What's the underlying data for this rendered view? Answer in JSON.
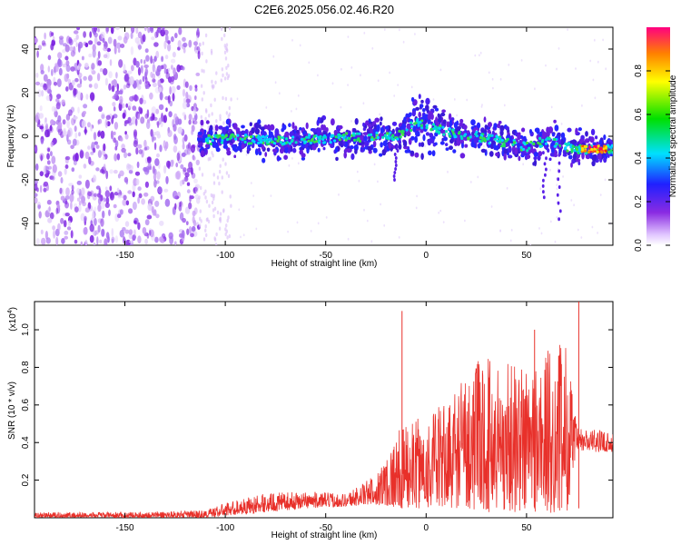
{
  "title": "C2E6.2025.056.02.46.R20",
  "colors": {
    "snr_line": "#e8302a",
    "background": "#ffffff",
    "axis": "#000000"
  },
  "chart_data": [
    {
      "type": "heatmap",
      "xlabel": "Height of straight line (km)",
      "ylabel": "Frequency (Hz)",
      "xlim": [
        -195,
        93
      ],
      "ylim": [
        -50,
        50
      ],
      "x_ticks": [
        -150,
        -100,
        -50,
        0,
        50
      ],
      "y_ticks": [
        -40,
        -20,
        0,
        20,
        40
      ],
      "colorbar": {
        "label": "Normalized spectral amplitude",
        "range": [
          0,
          1
        ],
        "ticks": [
          "0.0",
          "0.2",
          "0.4",
          "0.6",
          "0.8"
        ],
        "colormap": "rainbow (white-violet-blue-cyan-green-yellow-red)"
      },
      "ridge_center_hz": [
        {
          "x": -113,
          "y": -2
        },
        {
          "x": -100,
          "y": -1
        },
        {
          "x": -75,
          "y": -2
        },
        {
          "x": -50,
          "y": -1
        },
        {
          "x": -25,
          "y": 0
        },
        {
          "x": -15,
          "y": 0
        },
        {
          "x": -5,
          "y": 6
        },
        {
          "x": 0,
          "y": 5
        },
        {
          "x": 10,
          "y": 2
        },
        {
          "x": 25,
          "y": 0
        },
        {
          "x": 40,
          "y": -3
        },
        {
          "x": 50,
          "y": -5
        },
        {
          "x": 60,
          "y": -2
        },
        {
          "x": 75,
          "y": -6
        },
        {
          "x": 93,
          "y": -6
        }
      ]
    },
    {
      "type": "line",
      "xlabel": "Height of straight line (km)",
      "ylabel": "SNR (10 * v/v)",
      "y_multiplier": "(x10",
      "y_multiplier_exp": "4",
      "y_multiplier_close": ")",
      "xlim": [
        -195,
        93
      ],
      "ylim": [
        0,
        1.15
      ],
      "x_ticks": [
        -150,
        -100,
        -50,
        0,
        50
      ],
      "y_ticks": [
        "0.2",
        "0.4",
        "0.6",
        "0.8",
        "1.0"
      ],
      "envelope": [
        {
          "x": -195,
          "lo": 0.0,
          "hi": 0.03
        },
        {
          "x": -150,
          "lo": 0.0,
          "hi": 0.03
        },
        {
          "x": -110,
          "lo": 0.0,
          "hi": 0.04
        },
        {
          "x": -100,
          "lo": 0.01,
          "hi": 0.08
        },
        {
          "x": -80,
          "lo": 0.03,
          "hi": 0.13
        },
        {
          "x": -60,
          "lo": 0.05,
          "hi": 0.14
        },
        {
          "x": -40,
          "lo": 0.06,
          "hi": 0.13
        },
        {
          "x": -25,
          "lo": 0.07,
          "hi": 0.23
        },
        {
          "x": -15,
          "lo": 0.05,
          "hi": 0.45
        },
        {
          "x": -10,
          "lo": 0.05,
          "hi": 0.5
        },
        {
          "x": 0,
          "lo": 0.05,
          "hi": 0.55
        },
        {
          "x": 10,
          "lo": 0.05,
          "hi": 0.62
        },
        {
          "x": 20,
          "lo": 0.05,
          "hi": 0.8
        },
        {
          "x": 30,
          "lo": 0.03,
          "hi": 0.87
        },
        {
          "x": 40,
          "lo": 0.03,
          "hi": 0.85
        },
        {
          "x": 50,
          "lo": 0.03,
          "hi": 0.85
        },
        {
          "x": 60,
          "lo": 0.02,
          "hi": 0.9
        },
        {
          "x": 70,
          "lo": 0.02,
          "hi": 0.96
        },
        {
          "x": 75,
          "lo": 0.35,
          "hi": 0.48
        },
        {
          "x": 93,
          "lo": 0.35,
          "hi": 0.46
        }
      ],
      "peaks": [
        {
          "x": -12,
          "y": 1.1
        },
        {
          "x": 54,
          "y": 1.0
        },
        {
          "x": 76,
          "y": 1.15
        }
      ]
    }
  ]
}
